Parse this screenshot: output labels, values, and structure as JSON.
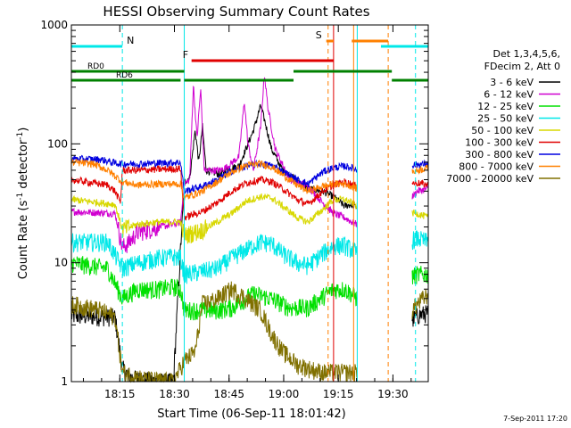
{
  "chart_data": {
    "type": "line",
    "title": "HESSI Observing Summary Count Rates",
    "xlabel": "Start Time (06-Sep-11 18:01:42)",
    "ylabel_main": "Count Rate (s",
    "ylabel_sup": "-1",
    "ylabel_rest": " detector",
    "ylabel_sup2": "-1",
    "ylabel_end": ")",
    "yscale": "log",
    "ylim": [
      1,
      1000
    ],
    "xlim_minutes": [
      0,
      98
    ],
    "x_ticks": [
      {
        "label": "18:15",
        "minute": 13.3
      },
      {
        "label": "18:30",
        "minute": 28.3
      },
      {
        "label": "18:45",
        "minute": 43.3
      },
      {
        "label": "19:00",
        "minute": 58.3
      },
      {
        "label": "19:15",
        "minute": 73.3
      },
      {
        "label": "19:30",
        "minute": 88.3
      }
    ],
    "y_ticks": [
      {
        "label": "1",
        "value": 1
      },
      {
        "label": "10",
        "value": 10
      },
      {
        "label": "100",
        "value": 100
      },
      {
        "label": "1000",
        "value": 1000
      }
    ],
    "legend": {
      "placement": "right",
      "header": [
        "Det 1,3,4,5,6,",
        "FDecim 2, Att 0"
      ],
      "entries": [
        {
          "name": "3 - 6 keV",
          "color": "#000000"
        },
        {
          "name": "6 - 12 keV",
          "color": "#d000d0"
        },
        {
          "name": "12 - 25 keV",
          "color": "#00e000"
        },
        {
          "name": "25 - 50 keV",
          "color": "#00e8e8"
        },
        {
          "name": "50 - 100 keV",
          "color": "#d8d800"
        },
        {
          "name": "100 - 300 keV",
          "color": "#e00000"
        },
        {
          "name": "300 - 800 keV",
          "color": "#0000e0"
        },
        {
          "name": "800 - 7000 keV",
          "color": "#ff8000"
        },
        {
          "name": "7000 - 20000 keV",
          "color": "#807000"
        }
      ]
    },
    "series": [
      {
        "name": "3 - 6 keV",
        "color": "#000000",
        "points": [
          [
            0,
            3.6
          ],
          [
            12,
            3.5
          ],
          [
            14,
            1.3
          ],
          [
            16,
            1.1
          ],
          [
            18,
            1.05
          ],
          [
            24,
            1
          ],
          [
            28,
            1
          ],
          [
            31,
            48
          ],
          [
            32.5,
            52
          ],
          [
            34,
            130
          ],
          [
            35,
            70
          ],
          [
            36,
            140
          ],
          [
            37,
            60
          ],
          [
            41,
            55
          ],
          [
            43,
            62
          ],
          [
            46,
            65
          ],
          [
            50,
            130
          ],
          [
            52,
            210
          ],
          [
            53,
            160
          ],
          [
            55,
            90
          ],
          [
            58,
            60
          ],
          [
            61,
            52
          ],
          [
            65,
            42
          ],
          [
            69,
            40
          ],
          [
            72,
            36
          ],
          [
            75,
            30
          ],
          [
            77,
            31
          ],
          [
            78.5,
            29
          ],
          [
            85,
            2.0
          ],
          [
            95,
            3.6
          ],
          [
            98,
            3.8
          ]
        ]
      },
      {
        "name": "6 - 12 keV",
        "color": "#d000d0",
        "points": [
          [
            0,
            27
          ],
          [
            12,
            26
          ],
          [
            14,
            13.5
          ],
          [
            16,
            15
          ],
          [
            18,
            18
          ],
          [
            24,
            20
          ],
          [
            28,
            21
          ],
          [
            30,
            22
          ],
          [
            31,
            46
          ],
          [
            32.5,
            50
          ],
          [
            33.5,
            320
          ],
          [
            34.5,
            110
          ],
          [
            35.5,
            290
          ],
          [
            36.5,
            60
          ],
          [
            41,
            60
          ],
          [
            43,
            65
          ],
          [
            46,
            78
          ],
          [
            47.5,
            230
          ],
          [
            48.5,
            100
          ],
          [
            50,
            60
          ],
          [
            52,
            140
          ],
          [
            53,
            390
          ],
          [
            54,
            200
          ],
          [
            56,
            90
          ],
          [
            60,
            50
          ],
          [
            65,
            44
          ],
          [
            69,
            32
          ],
          [
            72,
            26
          ],
          [
            75,
            24
          ],
          [
            77,
            22
          ],
          [
            78.5,
            21
          ],
          [
            85,
            18
          ],
          [
            95,
            40
          ],
          [
            98,
            42
          ]
        ]
      },
      {
        "name": "12 - 25 keV",
        "color": "#00e000",
        "points": [
          [
            0,
            10
          ],
          [
            10,
            9
          ],
          [
            14,
            5
          ],
          [
            18,
            6
          ],
          [
            24,
            6
          ],
          [
            28,
            6.3
          ],
          [
            30,
            6
          ],
          [
            31,
            4
          ],
          [
            40,
            4
          ],
          [
            44,
            4.2
          ],
          [
            50,
            5.5
          ],
          [
            55,
            5
          ],
          [
            60,
            4.2
          ],
          [
            65,
            4.2
          ],
          [
            69,
            5.2
          ],
          [
            72,
            6
          ],
          [
            75,
            6
          ],
          [
            77,
            5.5
          ],
          [
            78.5,
            5
          ],
          [
            95,
            8
          ],
          [
            98,
            8
          ]
        ]
      },
      {
        "name": "25 - 50 keV",
        "color": "#00e8e8",
        "points": [
          [
            0,
            15
          ],
          [
            10,
            15
          ],
          [
            14,
            9
          ],
          [
            18,
            10
          ],
          [
            24,
            11
          ],
          [
            28,
            11.3
          ],
          [
            30,
            11
          ],
          [
            31,
            8
          ],
          [
            36,
            8.5
          ],
          [
            40,
            9
          ],
          [
            44,
            11
          ],
          [
            48,
            13
          ],
          [
            52,
            15
          ],
          [
            55,
            14.5
          ],
          [
            58,
            12
          ],
          [
            62,
            10
          ],
          [
            65,
            9.5
          ],
          [
            69,
            12
          ],
          [
            72,
            14
          ],
          [
            75,
            14
          ],
          [
            77,
            13
          ],
          [
            78.5,
            12
          ],
          [
            95,
            16
          ],
          [
            98,
            15
          ]
        ]
      },
      {
        "name": "50 - 100 keV",
        "color": "#d8d800",
        "points": [
          [
            0,
            34
          ],
          [
            12,
            31
          ],
          [
            14,
            19
          ],
          [
            18,
            21
          ],
          [
            24,
            22
          ],
          [
            28,
            22
          ],
          [
            30,
            22
          ],
          [
            31,
            17
          ],
          [
            36,
            19
          ],
          [
            40,
            22
          ],
          [
            44,
            26
          ],
          [
            48,
            33
          ],
          [
            52,
            36
          ],
          [
            55,
            35
          ],
          [
            58,
            30
          ],
          [
            62,
            24
          ],
          [
            65,
            22
          ],
          [
            69,
            28
          ],
          [
            72,
            34
          ],
          [
            75,
            34
          ],
          [
            77,
            32
          ],
          [
            78.5,
            30
          ],
          [
            95,
            26
          ],
          [
            98,
            24
          ]
        ]
      },
      {
        "name": "100 - 300 keV",
        "color": "#e00000",
        "points": [
          [
            0,
            50
          ],
          [
            10,
            45
          ],
          [
            12,
            40
          ],
          [
            13.5,
            32
          ],
          [
            14,
            60
          ],
          [
            18,
            60
          ],
          [
            24,
            61
          ],
          [
            30,
            62
          ],
          [
            31,
            24
          ],
          [
            36,
            27
          ],
          [
            40,
            32
          ],
          [
            44,
            40
          ],
          [
            48,
            47
          ],
          [
            52,
            50
          ],
          [
            55,
            48
          ],
          [
            58,
            42
          ],
          [
            62,
            34
          ],
          [
            65,
            31
          ],
          [
            69,
            40
          ],
          [
            72,
            45
          ],
          [
            75,
            48
          ],
          [
            77,
            46
          ],
          [
            78.5,
            44
          ],
          [
            95,
            47
          ],
          [
            98,
            45
          ]
        ]
      },
      {
        "name": "300 - 800 keV",
        "color": "#0000e0",
        "points": [
          [
            0,
            75
          ],
          [
            8,
            74
          ],
          [
            12,
            69
          ],
          [
            14,
            68
          ],
          [
            18,
            68
          ],
          [
            24,
            69
          ],
          [
            30,
            70
          ],
          [
            31,
            40
          ],
          [
            36,
            44
          ],
          [
            40,
            50
          ],
          [
            44,
            59
          ],
          [
            48,
            65
          ],
          [
            52,
            68
          ],
          [
            55,
            66
          ],
          [
            58,
            59
          ],
          [
            62,
            50
          ],
          [
            65,
            46
          ],
          [
            69,
            58
          ],
          [
            72,
            63
          ],
          [
            75,
            65
          ],
          [
            77,
            63
          ],
          [
            78.5,
            60
          ],
          [
            95,
            67
          ],
          [
            98,
            68
          ]
        ]
      },
      {
        "name": "800 - 7000 keV",
        "color": "#ff8000",
        "points": [
          [
            0,
            70
          ],
          [
            6,
            68
          ],
          [
            10,
            60
          ],
          [
            14,
            48
          ],
          [
            18,
            45
          ],
          [
            24,
            46
          ],
          [
            30,
            46
          ],
          [
            31,
            35
          ],
          [
            36,
            40
          ],
          [
            40,
            48
          ],
          [
            44,
            58
          ],
          [
            48,
            66
          ],
          [
            52,
            68
          ],
          [
            55,
            64
          ],
          [
            58,
            55
          ],
          [
            62,
            45
          ],
          [
            65,
            40
          ],
          [
            69,
            44
          ],
          [
            72,
            46
          ],
          [
            75,
            46
          ],
          [
            77,
            44
          ],
          [
            78.5,
            42
          ],
          [
            95,
            60
          ],
          [
            98,
            63
          ]
        ]
      },
      {
        "name": "7000 - 20000 keV",
        "color": "#807000",
        "points": [
          [
            0,
            4.5
          ],
          [
            8,
            4
          ],
          [
            12,
            3.5
          ],
          [
            14,
            1.2
          ],
          [
            20,
            1.05
          ],
          [
            28,
            1
          ],
          [
            31,
            1.5
          ],
          [
            34,
            1.8
          ],
          [
            36,
            4.5
          ],
          [
            40,
            5
          ],
          [
            44,
            6
          ],
          [
            48,
            5
          ],
          [
            52,
            4
          ],
          [
            55,
            2.5
          ],
          [
            58,
            1.8
          ],
          [
            62,
            1.4
          ],
          [
            65,
            1.3
          ],
          [
            69,
            1.2
          ],
          [
            75,
            1.2
          ],
          [
            78.5,
            1.2
          ],
          [
            95,
            4.5
          ],
          [
            98,
            5.5
          ]
        ]
      }
    ],
    "state_bars": [
      {
        "label": "N",
        "color": "#00e8e8",
        "ranges": [
          [
            0,
            14
          ],
          [
            85,
            98
          ]
        ],
        "level": 0.94
      },
      {
        "label": "F",
        "color": "#e00000",
        "ranges": [
          [
            33,
            72
          ]
        ],
        "level": 0.9
      },
      {
        "label": "S",
        "color": "#ff8000",
        "ranges": [
          [
            70,
            72
          ],
          [
            77,
            87
          ]
        ],
        "level": 0.955
      },
      {
        "label": "RD0",
        "color": "#008000",
        "ranges": [
          [
            0,
            31
          ],
          [
            61,
            88
          ]
        ],
        "level": 0.87
      },
      {
        "label": "RD6",
        "color": "#008000",
        "ranges": [
          [
            0,
            30
          ],
          [
            31,
            61
          ],
          [
            88,
            98
          ]
        ],
        "level": 0.845
      }
    ],
    "vlines": [
      {
        "minute": 14,
        "color": "#00e8e8",
        "dash": true
      },
      {
        "minute": 31,
        "color": "#00e8e8",
        "dash": false
      },
      {
        "minute": 70.5,
        "color": "#ff8000",
        "dash": true
      },
      {
        "minute": 72,
        "color": "#e00000",
        "dash": false
      },
      {
        "minute": 77.5,
        "color": "#ff8000",
        "dash": false
      },
      {
        "minute": 78.5,
        "color": "#00e8e8",
        "dash": false
      },
      {
        "minute": 87,
        "color": "#ff8000",
        "dash": true
      },
      {
        "minute": 94.5,
        "color": "#00e8e8",
        "dash": true
      }
    ],
    "gaps": [
      [
        78.5,
        93.5
      ]
    ],
    "footer_date": "7-Sep-2011 17:20"
  }
}
